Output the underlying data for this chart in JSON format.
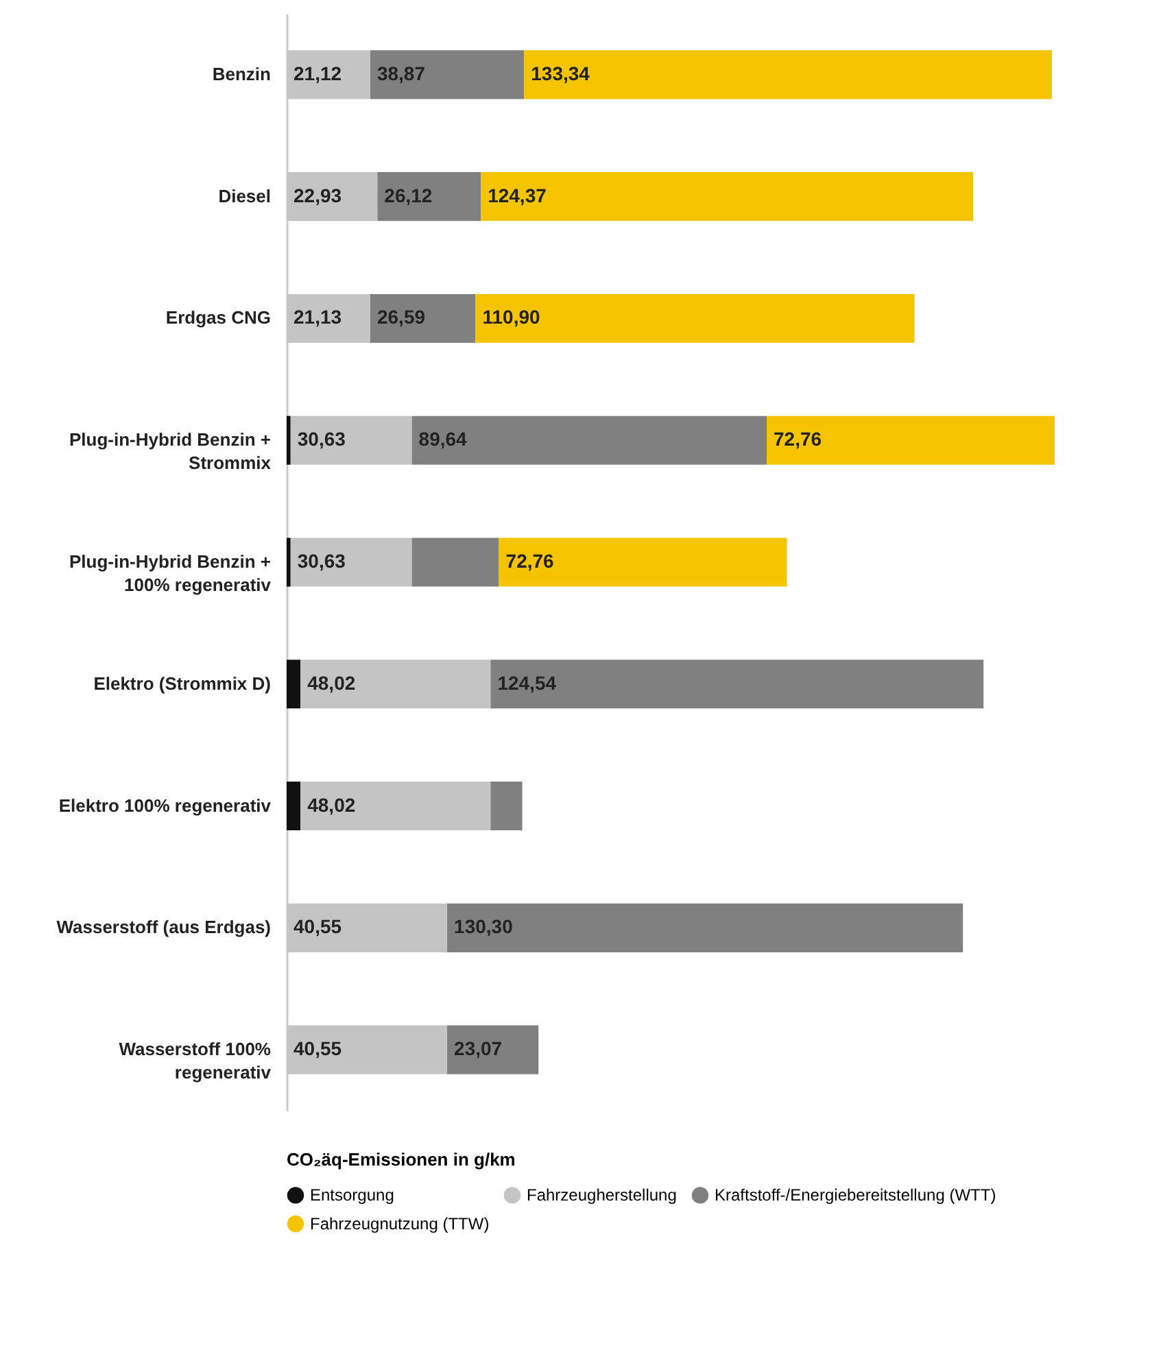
{
  "chart_data": {
    "type": "bar",
    "orientation": "horizontal",
    "stacked": true,
    "legend": "bottom",
    "legend_title": "CO₂äq-Emissionen in g/km",
    "categories": [
      "Benzin",
      "Diesel",
      "Erdgas CNG",
      "Plug-in-Hybrid Benzin + Strommix",
      "Plug-in-Hybrid Benzin + 100% regenerativ",
      "Elektro (Strommix D)",
      "Elektro 100% regenerativ",
      "Wasserstoff (aus Erdgas)",
      "Wasserstoff 100% regenerativ"
    ],
    "series": [
      {
        "name": "Entsorgung",
        "color": "#111111",
        "values": [
          null,
          null,
          null,
          1,
          1,
          3.5,
          3.5,
          null,
          null
        ]
      },
      {
        "name": "Fahrzeugherstellung",
        "color": "#c4c4c4",
        "values": [
          21.12,
          22.93,
          21.13,
          30.63,
          30.63,
          48.02,
          48.02,
          40.55,
          40.55
        ],
        "value_labels": [
          "21,12",
          "22,93",
          "21,13",
          "30,63",
          "30,63",
          "48,02",
          "48,02",
          "40,55",
          "40,55"
        ]
      },
      {
        "name": "Kraftstoff-/Energiebereitstellung (WTT)",
        "color": "#808080",
        "values": [
          38.87,
          26.12,
          26.59,
          89.64,
          22,
          124.54,
          8,
          130.3,
          23.07
        ],
        "value_labels": [
          "38,87",
          "26,12",
          "26,59",
          "89,64",
          null,
          "124,54",
          null,
          "130,30",
          "23,07"
        ]
      },
      {
        "name": "Fahrzeugnutzung (TTW)",
        "color": "#f5c400",
        "values": [
          133.34,
          124.37,
          110.9,
          72.76,
          72.76,
          null,
          null,
          null,
          null
        ],
        "value_labels": [
          "133,34",
          "124,37",
          "110,90",
          "72,76",
          "72,76",
          null,
          null,
          null,
          null
        ]
      }
    ]
  }
}
